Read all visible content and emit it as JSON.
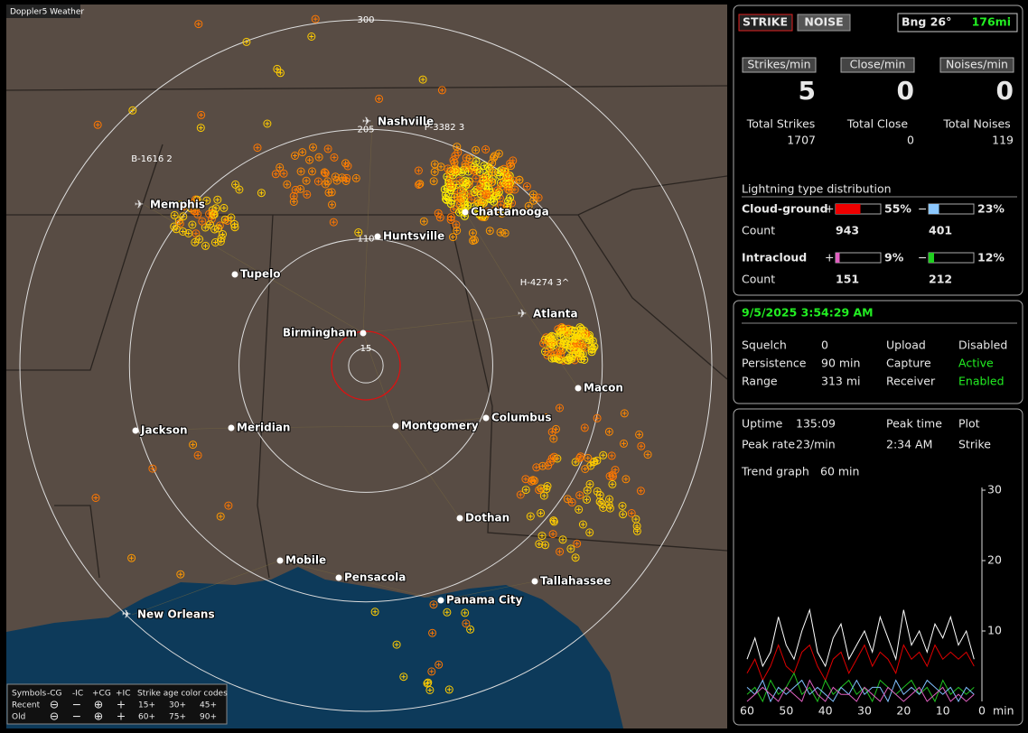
{
  "app_title": "Doppler5 Weather",
  "map": {
    "rings": [
      300,
      205,
      110,
      15
    ],
    "cities": [
      "Nashville",
      "Memphis",
      "Chattanooga",
      "Huntsville",
      "Tupelo",
      "Atlanta",
      "Birmingham",
      "Macon",
      "Jackson",
      "Meridian",
      "Montgomery",
      "Columbus",
      "Dothan",
      "Mobile",
      "Pensacola",
      "Tallahassee",
      "Panama City",
      "New Orleans"
    ],
    "stations": [
      "B-1616 2",
      "P-3382 3",
      "H-4274 3^"
    ]
  },
  "legend": {
    "symbols": "Symbols",
    "types": [
      "-CG",
      "-IC",
      "+CG",
      "+IC"
    ],
    "age_title": "Strike age color codes",
    "rows": [
      {
        "label": "Recent",
        "ages": [
          "15+",
          "30+",
          "45+"
        ]
      },
      {
        "label": "Old",
        "ages": [
          "60+",
          "75+",
          "90+"
        ]
      }
    ]
  },
  "header": {
    "strike_button": "STRIKE",
    "noise_button": "NOISE",
    "bearing": "Bng 26°",
    "distance": "176mi"
  },
  "rates": [
    {
      "label": "Strikes/min",
      "value": 5
    },
    {
      "label": "Close/min",
      "value": 0
    },
    {
      "label": "Noises/min",
      "value": 0
    }
  ],
  "totals": [
    {
      "label": "Total Strikes",
      "value": 1707
    },
    {
      "label": "Total Close",
      "value": 0
    },
    {
      "label": "Total Noises",
      "value": 119
    }
  ],
  "distribution": {
    "title": "Lightning type distribution",
    "rows": [
      {
        "label": "Cloud-ground",
        "positive": {
          "sign": "+",
          "percent": {
            "value": 55,
            "label": "55%"
          }
        },
        "negative": {
          "sign": "−",
          "percent": {
            "value": 23,
            "label": "23%"
          }
        },
        "count_label": "Count",
        "counts": [
          943,
          401
        ]
      },
      {
        "label": "Intracloud",
        "positive": {
          "sign": "+",
          "percent": {
            "value": 9,
            "label": "9%"
          }
        },
        "negative": {
          "sign": "−",
          "percent": {
            "value": 12,
            "label": "12%"
          }
        },
        "count_label": "Count",
        "counts": [
          151,
          212
        ]
      }
    ]
  },
  "status": {
    "datetime": "9/5/2025 3:54:29 AM",
    "rows": [
      [
        "Squelch",
        "0",
        "Upload",
        "Disabled"
      ],
      [
        "Persistence",
        "90 min",
        "Capture",
        "Active"
      ],
      [
        "Range",
        "313 mi",
        "Receiver",
        "Enabled"
      ]
    ]
  },
  "stats": {
    "rows": [
      [
        "Uptime",
        "135:09",
        "Peak time",
        "Plot"
      ],
      [
        "Peak rate",
        "23/min",
        "2:34 AM",
        "Strike"
      ]
    ],
    "trend_label": "Trend graph",
    "trend_span": "60 min"
  },
  "trend_graph": {
    "type": "line",
    "x_unit": "min",
    "x": [
      60,
      58,
      56,
      54,
      52,
      50,
      48,
      46,
      44,
      42,
      40,
      38,
      36,
      34,
      32,
      30,
      28,
      26,
      24,
      22,
      20,
      18,
      16,
      14,
      12,
      10,
      8,
      6,
      4,
      2
    ],
    "xlim": [
      60,
      0
    ],
    "xticks": [
      60,
      50,
      40,
      30,
      20,
      10,
      0
    ],
    "ylim": [
      0,
      30
    ],
    "yticks": [
      10,
      20,
      30
    ],
    "series": [
      {
        "color": "#ffffff",
        "values": [
          6,
          9,
          5,
          7,
          12,
          8,
          6,
          10,
          13,
          7,
          5,
          9,
          11,
          6,
          8,
          10,
          7,
          12,
          9,
          6,
          13,
          8,
          10,
          7,
          11,
          9,
          12,
          8,
          10,
          6
        ]
      },
      {
        "color": "#e00000",
        "values": [
          4,
          6,
          3,
          5,
          8,
          5,
          4,
          7,
          8,
          5,
          3,
          6,
          7,
          4,
          6,
          8,
          5,
          7,
          6,
          4,
          8,
          6,
          7,
          5,
          8,
          6,
          7,
          6,
          7,
          5
        ]
      },
      {
        "color": "#20c020",
        "values": [
          1,
          2,
          0,
          3,
          1,
          2,
          4,
          1,
          2,
          0,
          3,
          1,
          2,
          3,
          1,
          2,
          0,
          3,
          2,
          1,
          2,
          3,
          1,
          2,
          0,
          3,
          1,
          2,
          1,
          2
        ]
      },
      {
        "color": "#80c0ff",
        "values": [
          2,
          1,
          3,
          0,
          2,
          1,
          2,
          3,
          1,
          2,
          1,
          0,
          2,
          1,
          3,
          1,
          2,
          2,
          0,
          3,
          1,
          2,
          1,
          3,
          2,
          1,
          2,
          0,
          2,
          1
        ]
      },
      {
        "color": "#e060c0",
        "values": [
          0,
          1,
          2,
          1,
          0,
          2,
          1,
          0,
          3,
          1,
          0,
          2,
          1,
          1,
          0,
          2,
          1,
          0,
          2,
          1,
          0,
          1,
          2,
          0,
          1,
          2,
          0,
          1,
          0,
          1
        ]
      }
    ]
  }
}
